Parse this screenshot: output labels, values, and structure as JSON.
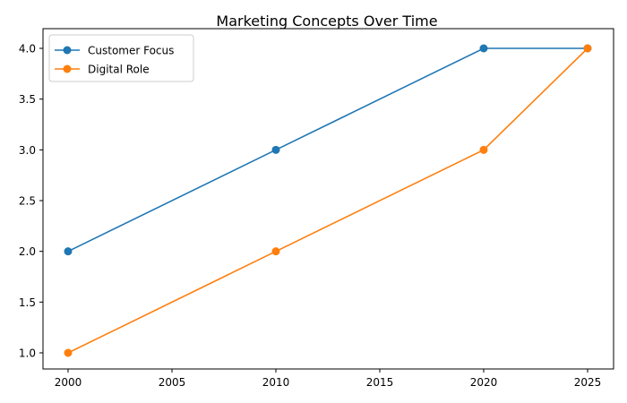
{
  "chart_data": {
    "type": "line",
    "title": "Marketing Concepts Over Time",
    "xlabel": "",
    "ylabel": "",
    "x": [
      2000,
      2010,
      2020,
      2025
    ],
    "series": [
      {
        "name": "Customer Focus",
        "color": "#1f77b4",
        "values": [
          2.0,
          3.0,
          4.0,
          4.0
        ],
        "marker": "circle"
      },
      {
        "name": "Digital Role",
        "color": "#ff7f0e",
        "values": [
          1.0,
          2.0,
          3.0,
          4.0
        ],
        "marker": "circle"
      }
    ],
    "xticks": [
      2000,
      2005,
      2010,
      2015,
      2020,
      2025
    ],
    "xtick_labels": [
      "2000",
      "2005",
      "2010",
      "2015",
      "2020",
      "2025"
    ],
    "yticks": [
      1.0,
      1.5,
      2.0,
      2.5,
      3.0,
      3.5,
      4.0
    ],
    "ytick_labels": [
      "1.0",
      "1.5",
      "2.0",
      "2.5",
      "3.0",
      "3.5",
      "4.0"
    ],
    "xlim": [
      1998.8,
      2026.2
    ],
    "ylim": [
      0.85,
      4.15
    ],
    "grid": false,
    "legend_position": "upper left"
  }
}
